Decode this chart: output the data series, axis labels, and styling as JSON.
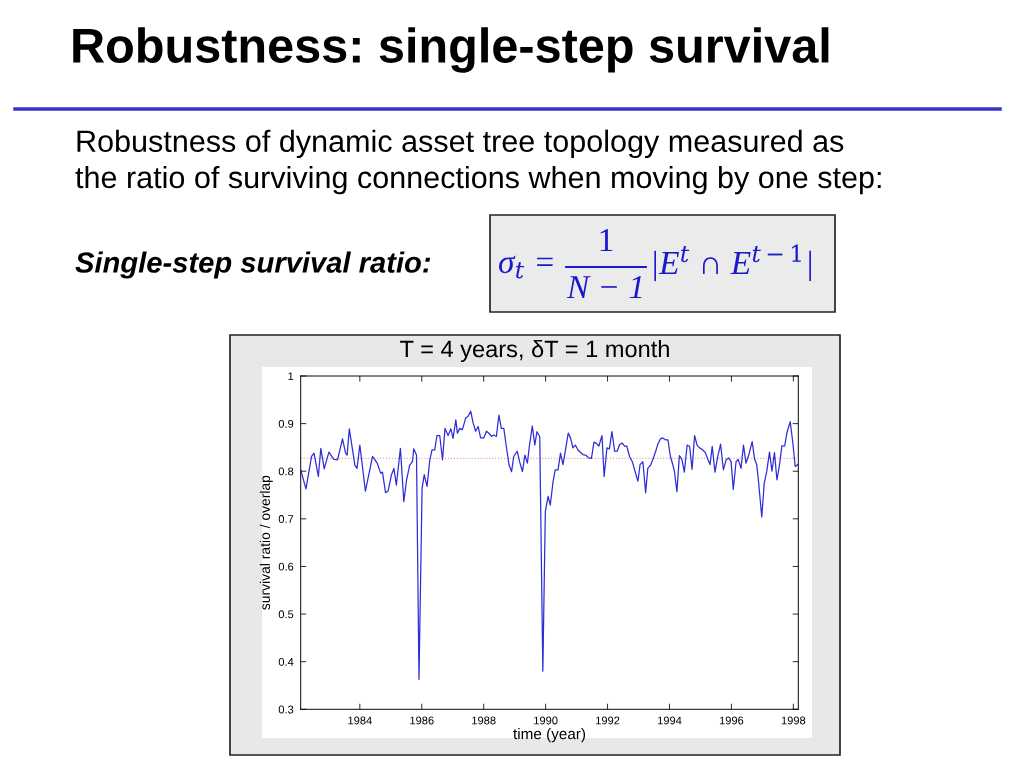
{
  "chart_data": {
    "type": "line",
    "title": "Robustness: single-step survival",
    "subtitle": "Robustness of dynamic asset tree topology measured as\nthe ratio of surviving connections when moving by one step:",
    "annotations": [
      "Single-step survival ratio:",
      "σ$_{t}$ =",
      "1",
      "N − 1",
      "|E$^{t}$ ∩ E$^{t−1}$|",
      "T = 4 years, δT = 1 month"
    ],
    "xlabel": "time (year)",
    "ylabel": "survival ratio / overlap",
    "xlim": [
      1982.09,
      1998.16
    ],
    "xticks": [
      1984,
      1986,
      1988,
      1990,
      1992,
      1994,
      1996,
      1998
    ],
    "ylim": [
      0.3,
      1
    ],
    "yticks": [
      0.3,
      0.4,
      0.5,
      0.6,
      0.7,
      0.8,
      0.9,
      1
    ],
    "ref_lines": [
      {
        "axis": "y",
        "value": 0.827,
        "color": "#e8a0a0",
        "line_style": "dotted"
      }
    ],
    "series": [
      {
        "color": "#2d2dd8",
        "x": [
          1982.09,
          1982.26,
          1982.44,
          1982.52,
          1982.66,
          1982.74,
          1982.85,
          1983.0,
          1983.16,
          1983.28,
          1983.44,
          1983.54,
          1983.59,
          1983.66,
          1983.84,
          1983.91,
          1984.0,
          1984.18,
          1984.41,
          1984.56,
          1984.67,
          1984.73,
          1984.83,
          1984.91,
          1985.02,
          1985.1,
          1985.18,
          1985.31,
          1985.42,
          1985.51,
          1985.61,
          1985.7,
          1985.74,
          1985.83,
          1985.91,
          1986.01,
          1986.08,
          1986.17,
          1986.26,
          1986.33,
          1986.42,
          1986.49,
          1986.58,
          1986.67,
          1986.75,
          1986.85,
          1986.94,
          1987.01,
          1987.1,
          1987.15,
          1987.23,
          1987.31,
          1987.42,
          1987.49,
          1987.58,
          1987.66,
          1987.74,
          1987.82,
          1987.9,
          1988.0,
          1988.09,
          1988.17,
          1988.25,
          1988.32,
          1988.41,
          1988.49,
          1988.57,
          1988.65,
          1988.73,
          1988.82,
          1988.9,
          1988.97,
          1989.08,
          1989.16,
          1989.25,
          1989.33,
          1989.41,
          1989.48,
          1989.57,
          1989.65,
          1989.72,
          1989.81,
          1989.91,
          1989.99,
          1990.08,
          1990.15,
          1990.24,
          1990.31,
          1990.4,
          1990.48,
          1990.56,
          1990.65,
          1990.73,
          1990.81,
          1990.88,
          1990.96,
          1991.04,
          1991.12,
          1991.2,
          1991.29,
          1991.39,
          1991.48,
          1991.56,
          1991.63,
          1991.72,
          1991.82,
          1991.89,
          1991.98,
          1992.06,
          1992.14,
          1992.23,
          1992.31,
          1992.39,
          1992.47,
          1992.56,
          1992.62,
          1992.71,
          1992.8,
          1992.89,
          1992.98,
          1993.05,
          1993.14,
          1993.23,
          1993.3,
          1993.39,
          1993.46,
          1993.55,
          1993.62,
          1993.71,
          1993.78,
          1993.87,
          1993.95,
          1994.03,
          1994.11,
          1994.16,
          1994.24,
          1994.32,
          1994.4,
          1994.48,
          1994.57,
          1994.65,
          1994.73,
          1994.81,
          1994.89,
          1994.97,
          1995.05,
          1995.15,
          1995.24,
          1995.31,
          1995.38,
          1995.47,
          1995.56,
          1995.65,
          1995.74,
          1995.83,
          1995.91,
          1995.99,
          1996.06,
          1996.15,
          1996.22,
          1996.31,
          1996.39,
          1996.47,
          1996.56,
          1996.67,
          1996.75,
          1996.82,
          1996.88,
          1996.98,
          1997.06,
          1997.14,
          1997.23,
          1997.31,
          1997.39,
          1997.47,
          1997.55,
          1997.63,
          1997.72,
          1997.8,
          1997.9,
          1997.98,
          1998.06,
          1998.14
        ],
        "values": [
          0.803,
          0.763,
          0.831,
          0.838,
          0.789,
          0.848,
          0.805,
          0.84,
          0.825,
          0.824,
          0.868,
          0.838,
          0.834,
          0.889,
          0.813,
          0.806,
          0.855,
          0.758,
          0.831,
          0.817,
          0.796,
          0.798,
          0.755,
          0.758,
          0.792,
          0.806,
          0.771,
          0.848,
          0.736,
          0.782,
          0.813,
          0.82,
          0.847,
          0.834,
          0.363,
          0.764,
          0.793,
          0.768,
          0.824,
          0.845,
          0.845,
          0.875,
          0.875,
          0.824,
          0.89,
          0.875,
          0.889,
          0.869,
          0.908,
          0.88,
          0.89,
          0.887,
          0.912,
          0.915,
          0.926,
          0.901,
          0.884,
          0.894,
          0.87,
          0.87,
          0.884,
          0.88,
          0.873,
          0.876,
          0.873,
          0.918,
          0.89,
          0.89,
          0.852,
          0.813,
          0.799,
          0.831,
          0.842,
          0.82,
          0.799,
          0.834,
          0.817,
          0.855,
          0.895,
          0.855,
          0.883,
          0.873,
          0.38,
          0.715,
          0.747,
          0.729,
          0.778,
          0.803,
          0.803,
          0.838,
          0.814,
          0.848,
          0.88,
          0.869,
          0.849,
          0.855,
          0.845,
          0.84,
          0.835,
          0.834,
          0.828,
          0.827,
          0.861,
          0.859,
          0.853,
          0.875,
          0.789,
          0.849,
          0.847,
          0.883,
          0.842,
          0.842,
          0.856,
          0.859,
          0.852,
          0.853,
          0.831,
          0.82,
          0.799,
          0.779,
          0.814,
          0.82,
          0.755,
          0.806,
          0.813,
          0.824,
          0.841,
          0.856,
          0.868,
          0.87,
          0.866,
          0.866,
          0.831,
          0.813,
          0.8,
          0.757,
          0.833,
          0.825,
          0.798,
          0.855,
          0.852,
          0.804,
          0.875,
          0.855,
          0.849,
          0.846,
          0.84,
          0.825,
          0.814,
          0.852,
          0.798,
          0.831,
          0.857,
          0.803,
          0.824,
          0.828,
          0.82,
          0.762,
          0.82,
          0.825,
          0.806,
          0.855,
          0.817,
          0.834,
          0.862,
          0.825,
          0.813,
          0.775,
          0.704,
          0.775,
          0.799,
          0.84,
          0.8,
          0.839,
          0.782,
          0.812,
          0.853,
          0.853,
          0.883,
          0.904,
          0.862,
          0.81,
          0.814
        ]
      }
    ]
  }
}
